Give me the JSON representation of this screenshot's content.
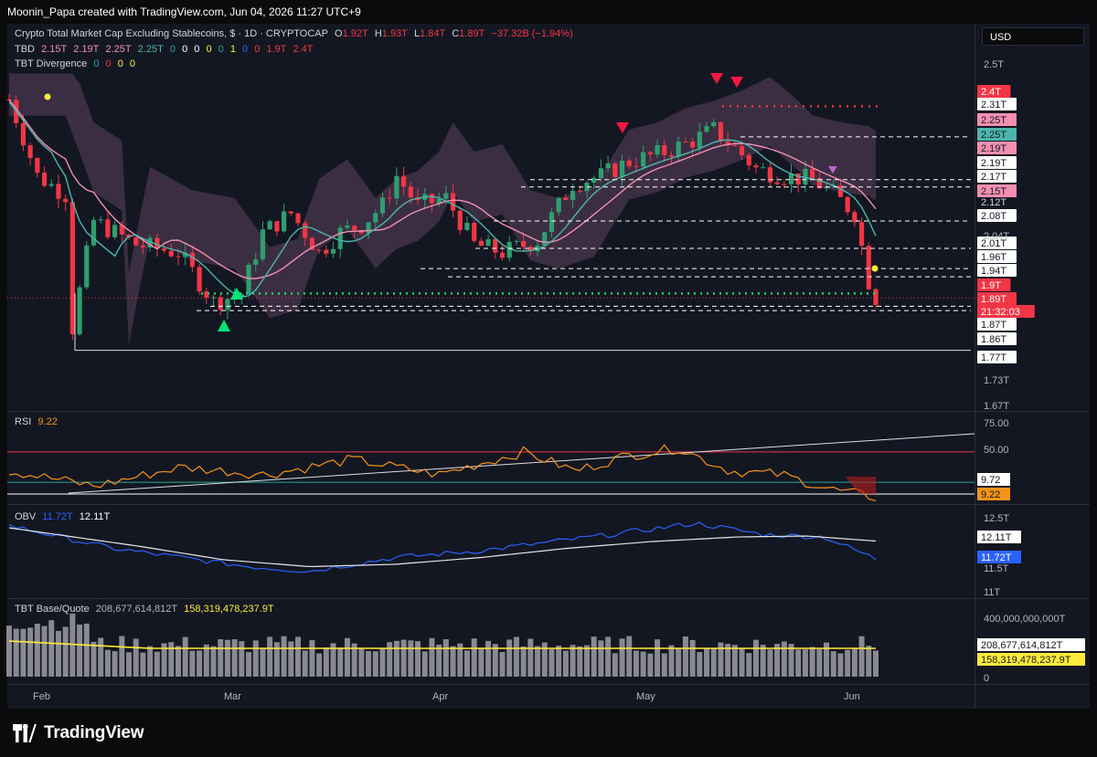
{
  "header": {
    "attribution": "Moonin_Papa created with TradingView.com, Jun 04, 2026 11:27 UTC+9"
  },
  "currency_button": "USD",
  "legend": {
    "symbol": "Crypto Total Market Cap Excluding Stablecoins, $ · 1D · CRYPTOCAP",
    "ohlc": {
      "o_label": "O",
      "o": "1.92T",
      "h_label": "H",
      "h": "1.93T",
      "l_label": "L",
      "l": "1.84T",
      "c_label": "C",
      "c": "1.89T",
      "change": "−37.32B (−1.94%)"
    },
    "tbd": {
      "name": "TBD",
      "values": [
        "2.15T",
        "2.19T",
        "2.25T",
        "2.25T",
        "0",
        "0",
        "0",
        "0",
        "0",
        "1",
        "0",
        "0",
        "1.9T",
        "2.4T"
      ]
    },
    "divergence": {
      "name": "TBT Divergence",
      "values": [
        "0",
        "0",
        "0",
        "0"
      ]
    },
    "rsi": {
      "name": "RSI",
      "value": "9.22"
    },
    "obv": {
      "name": "OBV",
      "v1": "11.72T",
      "v2": "12.11T"
    },
    "volume": {
      "name": "TBT Base/Quote",
      "v1": "208,677,614,812T",
      "v2": "158,319,478,237.9T"
    }
  },
  "footer": {
    "brand": "TradingView"
  },
  "colors": {
    "bull": "#26a69a",
    "bull_candle": "#2e9e6e",
    "bear": "#f23645",
    "rsi": "#f7931a",
    "obv": "#2962ff",
    "obv_ma": "#e8e8e8",
    "vol_ma": "#ffeb3b",
    "ema_upper": "#f48fb1",
    "ema_lower": "#4db6ac",
    "cloud": "#6d4b6a",
    "background": "#131722"
  },
  "chart_data": [
    {
      "type": "candlestick",
      "title": "Crypto Total Market Cap Excluding Stablecoins, $ · 1D · CRYPTOCAP",
      "x_tick_labels": [
        "Feb",
        "Mar",
        "Apr",
        "May",
        "Jun"
      ],
      "y_scale": "log",
      "y_tick_labels": [
        "2.5T",
        "2.04T",
        "1.73T",
        "1.67T"
      ],
      "price_level_labels": [
        {
          "text": "2.4T",
          "style": "red"
        },
        {
          "text": "2.31T",
          "style": "white"
        },
        {
          "text": "2.25T",
          "style": "pink"
        },
        {
          "text": "2.25T",
          "style": "green"
        },
        {
          "text": "2.19T",
          "style": "pink"
        },
        {
          "text": "2.19T",
          "style": "white"
        },
        {
          "text": "2.17T",
          "style": "white"
        },
        {
          "text": "2.15T",
          "style": "pink"
        },
        {
          "text": "2.12T",
          "style": "plain"
        },
        {
          "text": "2.08T",
          "style": "white"
        },
        {
          "text": "2.01T",
          "style": "white"
        },
        {
          "text": "1.96T",
          "style": "white"
        },
        {
          "text": "1.94T",
          "style": "white"
        },
        {
          "text": "1.9T",
          "style": "red"
        },
        {
          "text": "1.89T",
          "style": "red"
        },
        {
          "text": "21:32:03",
          "style": "red"
        },
        {
          "text": "1.87T",
          "style": "white"
        },
        {
          "text": "1.86T",
          "style": "white"
        },
        {
          "text": "1.77T",
          "style": "white"
        }
      ],
      "last_close": 1.89,
      "support_line": 1.77,
      "resistance_line": 2.4,
      "grid": false
    },
    {
      "type": "line",
      "title": "RSI",
      "y_tick_labels": [
        "75.00",
        "50.00"
      ],
      "overbought": 70,
      "oversold": 30,
      "last_value": 9.22,
      "marker_labels": [
        "9.72",
        "9.22"
      ],
      "rsi_x": [
        0,
        10,
        20,
        30,
        40,
        50,
        60,
        66,
        72,
        78,
        84,
        90,
        96,
        101
      ],
      "rsi_values": [
        45,
        25,
        50,
        40,
        60,
        40,
        70,
        45,
        65,
        75,
        45,
        40,
        20,
        10
      ]
    },
    {
      "type": "line",
      "title": "OBV",
      "y_tick_labels": [
        "12.5T",
        "11.5T",
        "11T"
      ],
      "marker_labels": [
        "12.11T",
        "11.72T"
      ],
      "series": [
        {
          "name": "OBV",
          "x": [
            0,
            12,
            22,
            28,
            35,
            45,
            55,
            68,
            80,
            88,
            95,
            101
          ],
          "values": [
            12.45,
            11.95,
            11.7,
            11.55,
            11.45,
            11.75,
            11.9,
            12.2,
            12.5,
            12.25,
            12.2,
            11.72
          ]
        },
        {
          "x": [
            0,
            15,
            25,
            35,
            45,
            55,
            65,
            75,
            85,
            93,
            101
          ],
          "values": [
            12.4,
            12.0,
            11.7,
            11.55,
            11.6,
            11.75,
            11.95,
            12.1,
            12.2,
            12.22,
            12.11
          ]
        }
      ]
    },
    {
      "type": "bar",
      "title": "TBT Base/Quote",
      "y_tick_labels": [
        "400,000,000,000T",
        "0"
      ],
      "marker_labels": [
        "208,677,614,812T",
        "158,319,478,237.9T"
      ]
    }
  ]
}
